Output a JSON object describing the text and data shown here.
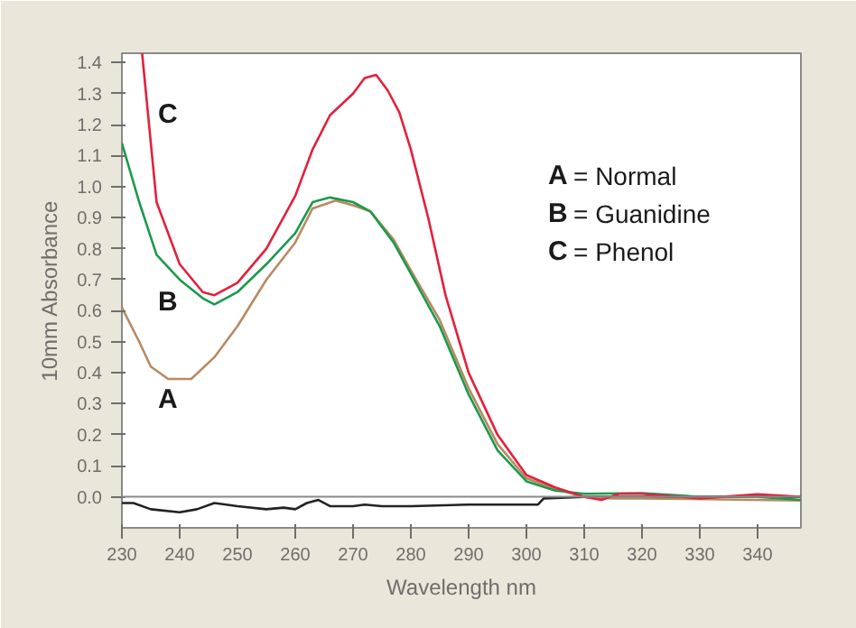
{
  "chart_data": {
    "type": "line",
    "xlabel": "Wavelength nm",
    "ylabel": "10mm Absorbance",
    "xlim": [
      230,
      347.5
    ],
    "ylim": [
      -0.1,
      1.43
    ],
    "xticks": [
      230,
      240,
      250,
      260,
      270,
      280,
      290,
      300,
      310,
      320,
      330,
      340
    ],
    "yticks": [
      {
        "value": 0,
        "label": "0.0"
      },
      0.1,
      0.2,
      0.3,
      0.4,
      0.5,
      0.6,
      0.7,
      0.8,
      0.9,
      {
        "value": 1,
        "label": "1.0"
      },
      1.1,
      1.2,
      1.3,
      1.4
    ],
    "grid": false,
    "marker": "none",
    "line_style": "solid",
    "ref_lines": [
      {
        "axis": "y",
        "value": 0,
        "color": "#8a8a8a"
      }
    ],
    "annotations": [
      "A = Normal",
      "B = Guanidine",
      "C = Phenol"
    ],
    "series": [
      {
        "name": "C",
        "color": "#e2213c",
        "x": [
          233.5,
          236,
          240,
          244,
          246,
          250,
          255,
          260,
          263,
          266,
          270,
          272,
          274,
          276,
          278,
          280,
          283,
          286,
          290,
          295,
          300,
          305,
          310,
          313,
          316,
          320,
          330,
          340,
          347.5
        ],
        "values": [
          1.43,
          0.95,
          0.75,
          0.66,
          0.65,
          0.69,
          0.8,
          0.97,
          1.12,
          1.23,
          1.3,
          1.35,
          1.36,
          1.31,
          1.24,
          1.12,
          0.9,
          0.65,
          0.4,
          0.2,
          0.07,
          0.03,
          0.0,
          -0.01,
          0.01,
          0.01,
          -0.005,
          0.008,
          0.0
        ]
      },
      {
        "name": "B",
        "color": "#1b9a4c",
        "x": [
          230,
          233,
          236,
          240,
          244,
          246,
          250,
          255,
          260,
          263,
          266,
          270,
          273,
          277,
          280,
          285,
          290,
          295,
          300,
          305,
          310,
          320,
          330,
          340,
          347.5
        ],
        "values": [
          1.14,
          0.95,
          0.78,
          0.7,
          0.64,
          0.62,
          0.66,
          0.75,
          0.85,
          0.95,
          0.965,
          0.95,
          0.92,
          0.82,
          0.72,
          0.55,
          0.33,
          0.15,
          0.05,
          0.02,
          0.01,
          0.012,
          0.0,
          0.0,
          -0.01
        ]
      },
      {
        "name": "A",
        "color": "#b88a62",
        "x": [
          230,
          233,
          235,
          238,
          242,
          246,
          250,
          255,
          260,
          263,
          267,
          270,
          273,
          277,
          280,
          285,
          290,
          295,
          300,
          305,
          310,
          315,
          320,
          347.5
        ],
        "values": [
          0.61,
          0.5,
          0.42,
          0.38,
          0.38,
          0.45,
          0.55,
          0.7,
          0.82,
          0.93,
          0.955,
          0.94,
          0.92,
          0.83,
          0.73,
          0.57,
          0.35,
          0.17,
          0.06,
          0.025,
          0.0,
          -0.005,
          -0.005,
          -0.012
        ]
      },
      {
        "color": "#222222",
        "x": [
          230,
          232,
          235,
          240,
          243,
          246,
          250,
          255,
          258,
          260,
          262,
          264,
          266,
          270,
          272,
          275,
          280,
          290,
          302,
          303,
          310,
          320,
          347.5
        ],
        "values": [
          -0.02,
          -0.02,
          -0.04,
          -0.05,
          -0.04,
          -0.02,
          -0.03,
          -0.04,
          -0.035,
          -0.04,
          -0.02,
          -0.01,
          -0.03,
          -0.03,
          -0.025,
          -0.03,
          -0.03,
          -0.025,
          -0.025,
          -0.005,
          0.0,
          0.0,
          0.0
        ]
      }
    ]
  }
}
